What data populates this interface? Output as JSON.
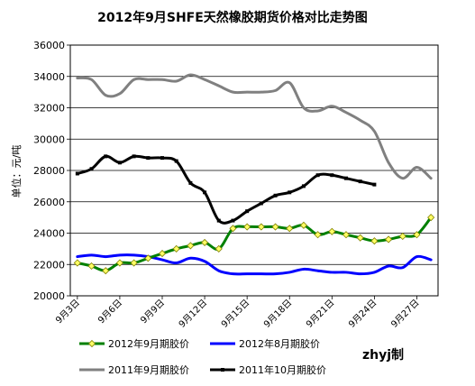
{
  "chart_data": {
    "type": "line",
    "title": "2012年9月SHFE天然橡胶期货价格对比走势图",
    "ylabel": "单位：元/吨",
    "xlabel": "",
    "ylim": [
      20000,
      36000
    ],
    "yticks": [
      20000,
      22000,
      24000,
      26000,
      28000,
      30000,
      32000,
      34000,
      36000
    ],
    "xticks": [
      "9月3日",
      "9月6日",
      "9月9日",
      "9月12日",
      "9月15日",
      "9月18日",
      "9月21日",
      "9月24日",
      "9月27日"
    ],
    "grid": "horizontal",
    "legend": "bottom",
    "watermark": "zhyj制",
    "series": [
      {
        "name": "2012年9月期胶价",
        "color": "#008000",
        "markers": true,
        "x": [
          3,
          4,
          5,
          6,
          7,
          8,
          9,
          10,
          11,
          12,
          13,
          14,
          15,
          16,
          17,
          18,
          19,
          20,
          21,
          22,
          23,
          24,
          25,
          26,
          27,
          28
        ],
        "values": [
          22100,
          21900,
          21600,
          22100,
          22100,
          22400,
          22700,
          23000,
          23200,
          23400,
          23000,
          24300,
          24400,
          24400,
          24400,
          24300,
          24500,
          23900,
          24100,
          23900,
          23700,
          23500,
          23600,
          23800,
          23900,
          25000
        ]
      },
      {
        "name": "2012年8月期胶价",
        "color": "#0000ff",
        "markers": false,
        "x": [
          3,
          4,
          5,
          6,
          7,
          8,
          9,
          10,
          11,
          12,
          13,
          14,
          15,
          16,
          17,
          18,
          19,
          20,
          21,
          22,
          23,
          24,
          25,
          26,
          27,
          28
        ],
        "values": [
          22500,
          22600,
          22500,
          22600,
          22600,
          22500,
          22300,
          22100,
          22400,
          22200,
          21600,
          21400,
          21400,
          21400,
          21400,
          21500,
          21700,
          21600,
          21500,
          21500,
          21400,
          21500,
          21900,
          21800,
          22500,
          22300
        ]
      },
      {
        "name": "2011年9月期胶价",
        "color": "#808080",
        "markers": false,
        "x": [
          3,
          4,
          5,
          6,
          7,
          8,
          9,
          10,
          11,
          12,
          13,
          14,
          15,
          16,
          17,
          18,
          19,
          20,
          21,
          22,
          23,
          24,
          25,
          26,
          27,
          28
        ],
        "values": [
          33900,
          33800,
          32800,
          32900,
          33800,
          33800,
          33800,
          33700,
          34100,
          33800,
          33400,
          33000,
          33000,
          33000,
          33100,
          33600,
          32000,
          31800,
          32100,
          31700,
          31200,
          30500,
          28500,
          27500,
          28200,
          27500
        ]
      },
      {
        "name": "2011年10月期胶价",
        "color": "#000000",
        "markers": true,
        "x": [
          3,
          4,
          5,
          6,
          7,
          8,
          9,
          10,
          11,
          12,
          13,
          14,
          15,
          16,
          17,
          18,
          19,
          20,
          21,
          22,
          23,
          24
        ],
        "values": [
          27800,
          28100,
          28900,
          28500,
          28900,
          28800,
          28800,
          28600,
          27200,
          26600,
          24800,
          24800,
          25400,
          25900,
          26400,
          26600,
          27000,
          27700,
          27700,
          27500,
          27300,
          27100
        ]
      }
    ]
  }
}
